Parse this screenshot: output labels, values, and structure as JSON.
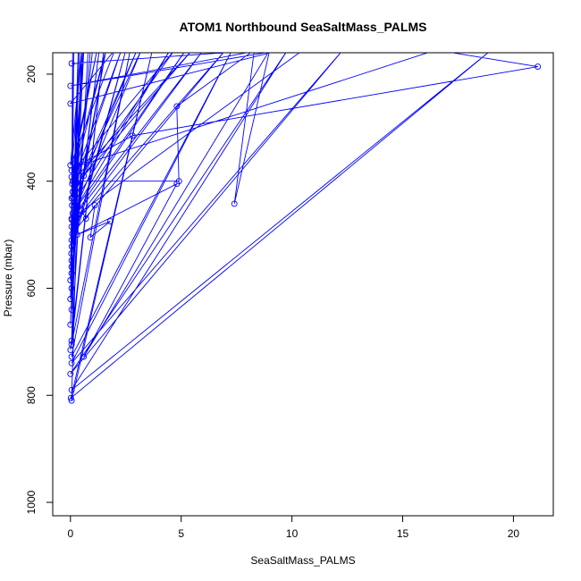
{
  "chart_data": {
    "type": "line",
    "title": "ATOM1 Northbound SeaSaltMass_PALMS",
    "xlabel": "SeaSaltMass_PALMS",
    "ylabel": "Pressure (mbar)",
    "xlim": [
      -0.8,
      21.8
    ],
    "ylim": [
      1025,
      160
    ],
    "y_axis_inverted": true,
    "grid": false,
    "legend": "none",
    "xticks": [
      0,
      5,
      10,
      15,
      20
    ],
    "yticks": [
      200,
      400,
      600,
      800,
      1000
    ],
    "line_color": "#0000ff",
    "marker": "open-circle",
    "series": [
      {
        "values": [
          [
            0.05,
            180
          ],
          [
            8.6,
            155
          ],
          [
            0.0,
            222
          ],
          [
            9.5,
            155
          ],
          [
            0.0,
            255
          ],
          [
            2.0,
            155
          ],
          [
            0.0,
            370
          ],
          [
            0.5,
            155
          ],
          [
            0.05,
            380
          ],
          [
            1.2,
            155
          ],
          [
            0.05,
            392
          ],
          [
            1.6,
            155
          ],
          [
            0.08,
            405
          ],
          [
            2.3,
            155
          ],
          [
            0.1,
            420
          ],
          [
            0.6,
            155
          ],
          [
            0.05,
            432
          ],
          [
            3.0,
            155
          ],
          [
            0.07,
            445
          ],
          [
            4.5,
            155
          ],
          [
            0.1,
            460
          ],
          [
            5.2,
            155
          ],
          [
            0.06,
            472
          ],
          [
            6.0,
            155
          ],
          [
            0.05,
            485
          ],
          [
            7.0,
            155
          ],
          [
            0.08,
            498
          ],
          [
            1.0,
            155
          ],
          [
            0.05,
            510
          ],
          [
            1.6,
            155
          ],
          [
            0.06,
            522
          ],
          [
            2.5,
            155
          ],
          [
            0.04,
            535
          ],
          [
            0.1,
            155
          ],
          [
            0.05,
            548
          ],
          [
            0.35,
            155
          ],
          [
            0.05,
            560
          ],
          [
            1.3,
            155
          ],
          [
            0.05,
            572
          ],
          [
            0.15,
            155
          ],
          [
            0.0,
            585
          ],
          [
            0.55,
            155
          ],
          [
            0.05,
            600
          ],
          [
            0.9,
            155
          ],
          [
            0.0,
            620
          ],
          [
            0.4,
            155
          ],
          [
            0.05,
            640
          ],
          [
            0.6,
            155
          ],
          [
            0.0,
            668
          ],
          [
            0.5,
            155
          ],
          [
            0.05,
            698
          ],
          [
            0.8,
            155
          ],
          [
            0.05,
            705
          ],
          [
            1.5,
            155
          ],
          [
            0.0,
            715
          ],
          [
            2.7,
            155
          ],
          [
            0.05,
            728
          ],
          [
            7.3,
            155
          ],
          [
            0.05,
            740
          ],
          [
            12.3,
            155
          ],
          [
            0.0,
            760
          ],
          [
            9.8,
            155
          ],
          [
            0.05,
            790
          ],
          [
            19.0,
            155
          ],
          [
            0.02,
            805
          ],
          [
            3.7,
            155
          ],
          [
            0.05,
            810
          ],
          [
            0.35,
            370
          ],
          [
            2.8,
            315
          ],
          [
            21.1,
            186
          ],
          [
            16.5,
            155
          ],
          [
            0.3,
            372
          ],
          [
            4.7,
            155
          ],
          [
            0.6,
            390
          ],
          [
            5.5,
            155
          ],
          [
            0.1,
            400
          ],
          [
            4.9,
            400
          ],
          [
            4.8,
            260
          ],
          [
            8.3,
            155
          ],
          [
            7.4,
            442
          ],
          [
            9.0,
            155
          ],
          [
            0.6,
            728
          ],
          [
            4.8,
            405
          ],
          [
            0.3,
            500
          ],
          [
            1.8,
            475
          ],
          [
            0.9,
            505
          ],
          [
            1.1,
            445
          ],
          [
            0.7,
            470
          ],
          [
            0.5,
            455
          ],
          [
            0.2,
            490
          ],
          [
            0.25,
            375
          ],
          [
            0.1,
            430
          ],
          [
            3.2,
            155
          ],
          [
            0.05,
            470
          ],
          [
            10.5,
            155
          ]
        ]
      }
    ]
  }
}
